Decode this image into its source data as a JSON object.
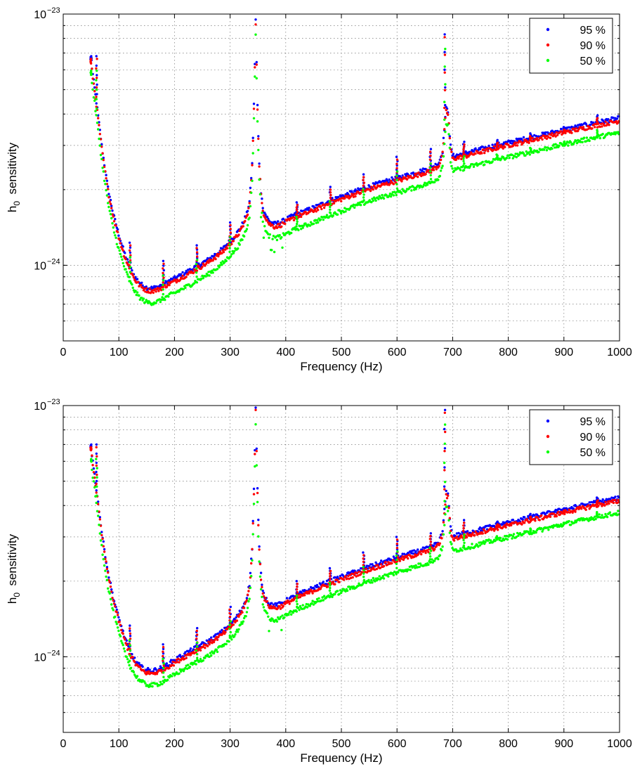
{
  "chart_data": [
    {
      "type": "scatter",
      "xlabel": "Frequency (Hz)",
      "ylabel_main": "h",
      "ylabel_sub": "0",
      "ylabel_rest": "sensitivity",
      "xlim": [
        0,
        1000
      ],
      "ylim": [
        5e-25,
        1e-23
      ],
      "yscale": "log",
      "grid": true,
      "legend_position": "top-right",
      "x_ticks": [
        "0",
        "100",
        "200",
        "300",
        "400",
        "500",
        "600",
        "700",
        "800",
        "900",
        "1000"
      ],
      "y_ticks": [
        {
          "base": "10",
          "exp": "−24"
        },
        {
          "base": "10",
          "exp": "−23"
        }
      ],
      "baseline": [
        [
          50,
          6.5e-24
        ],
        [
          60,
          4.4e-24
        ],
        [
          70,
          2.9e-24
        ],
        [
          80,
          2.05e-24
        ],
        [
          90,
          1.6e-24
        ],
        [
          100,
          1.32e-24
        ],
        [
          110,
          1.12e-24
        ],
        [
          120,
          9.8e-25
        ],
        [
          130,
          8.9e-25
        ],
        [
          140,
          8.4e-25
        ],
        [
          150,
          8.15e-25
        ],
        [
          160,
          8.1e-25
        ],
        [
          170,
          8.2e-25
        ],
        [
          180,
          8.4e-25
        ],
        [
          190,
          8.65e-25
        ],
        [
          200,
          8.85e-25
        ],
        [
          210,
          9.1e-25
        ],
        [
          220,
          9.35e-25
        ],
        [
          230,
          9.6e-25
        ],
        [
          240,
          9.9e-25
        ],
        [
          250,
          1.02e-24
        ],
        [
          260,
          1.05e-24
        ],
        [
          270,
          1.09e-24
        ],
        [
          280,
          1.13e-24
        ],
        [
          290,
          1.18e-24
        ],
        [
          300,
          1.25e-24
        ],
        [
          310,
          1.32e-24
        ],
        [
          320,
          1.42e-24
        ],
        [
          330,
          1.6e-24
        ],
        [
          335,
          1.8e-24
        ],
        [
          340,
          2.6e-24
        ],
        [
          343,
          4.5e-24
        ],
        [
          346,
          9.5e-24
        ],
        [
          349,
          4.5e-24
        ],
        [
          352,
          2.6e-24
        ],
        [
          356,
          1.9e-24
        ],
        [
          360,
          1.65e-24
        ],
        [
          370,
          1.5e-24
        ],
        [
          380,
          1.46e-24
        ],
        [
          390,
          1.48e-24
        ],
        [
          400,
          1.52e-24
        ],
        [
          420,
          1.6e-24
        ],
        [
          440,
          1.66e-24
        ],
        [
          460,
          1.73e-24
        ],
        [
          480,
          1.81e-24
        ],
        [
          500,
          1.88e-24
        ],
        [
          520,
          1.95e-24
        ],
        [
          540,
          2.02e-24
        ],
        [
          560,
          2.09e-24
        ],
        [
          580,
          2.16e-24
        ],
        [
          600,
          2.22e-24
        ],
        [
          620,
          2.29e-24
        ],
        [
          640,
          2.36e-24
        ],
        [
          660,
          2.43e-24
        ],
        [
          675,
          2.55e-24
        ],
        [
          682,
          2.85e-24
        ],
        [
          688,
          4.2e-24
        ],
        [
          692,
          4.1e-24
        ],
        [
          696,
          3e-24
        ],
        [
          700,
          2.72e-24
        ],
        [
          720,
          2.78e-24
        ],
        [
          740,
          2.86e-24
        ],
        [
          760,
          2.93e-24
        ],
        [
          780,
          3.01e-24
        ],
        [
          800,
          3.08e-24
        ],
        [
          820,
          3.15e-24
        ],
        [
          840,
          3.22e-24
        ],
        [
          860,
          3.3e-24
        ],
        [
          880,
          3.38e-24
        ],
        [
          900,
          3.46e-24
        ],
        [
          920,
          3.54e-24
        ],
        [
          940,
          3.62e-24
        ],
        [
          960,
          3.7e-24
        ],
        [
          980,
          3.78e-24
        ],
        [
          1000,
          3.85e-24
        ]
      ],
      "outliers": [
        [
          50,
          6.8e-24
        ],
        [
          60,
          6.8e-24
        ],
        [
          120,
          1.23e-24
        ],
        [
          180,
          1.04e-24
        ],
        [
          240,
          1.2e-24
        ],
        [
          300,
          1.48e-24
        ],
        [
          420,
          1.78e-24
        ],
        [
          480,
          2.05e-24
        ],
        [
          540,
          2.3e-24
        ],
        [
          600,
          2.7e-24
        ],
        [
          660,
          2.9e-24
        ],
        [
          686,
          8.3e-24
        ],
        [
          720,
          3.1e-24
        ],
        [
          780,
          3.15e-24
        ],
        [
          840,
          3.35e-24
        ],
        [
          900,
          3.55e-24
        ],
        [
          960,
          3.95e-24
        ]
      ],
      "series": [
        {
          "name": "95 %",
          "color": "#0000ff",
          "scale": 1.0
        },
        {
          "name": "90 %",
          "color": "#ff0000",
          "scale": 0.975
        },
        {
          "name": "50 %",
          "color": "#00ff00",
          "scale": 0.875
        }
      ]
    },
    {
      "type": "scatter",
      "xlabel": "Frequency (Hz)",
      "ylabel_main": "h",
      "ylabel_sub": "0",
      "ylabel_rest": "sensitivity",
      "xlim": [
        0,
        1000
      ],
      "ylim": [
        5e-25,
        1e-23
      ],
      "yscale": "log",
      "grid": true,
      "legend_position": "top-right",
      "x_ticks": [
        "0",
        "100",
        "200",
        "300",
        "400",
        "500",
        "600",
        "700",
        "800",
        "900",
        "1000"
      ],
      "y_ticks": [
        {
          "base": "10",
          "exp": "−24"
        },
        {
          "base": "10",
          "exp": "−23"
        }
      ],
      "baseline": [
        [
          50,
          6.8e-24
        ],
        [
          60,
          4.6e-24
        ],
        [
          70,
          3.05e-24
        ],
        [
          80,
          2.2e-24
        ],
        [
          90,
          1.72e-24
        ],
        [
          100,
          1.42e-24
        ],
        [
          110,
          1.2e-24
        ],
        [
          120,
          1.05e-24
        ],
        [
          130,
          9.6e-25
        ],
        [
          140,
          9.1e-25
        ],
        [
          150,
          8.85e-25
        ],
        [
          160,
          8.8e-25
        ],
        [
          170,
          8.9e-25
        ],
        [
          180,
          9.1e-25
        ],
        [
          190,
          9.4e-25
        ],
        [
          200,
          9.7e-25
        ],
        [
          210,
          1e-24
        ],
        [
          220,
          1.03e-24
        ],
        [
          230,
          1.06e-24
        ],
        [
          240,
          1.09e-24
        ],
        [
          250,
          1.12e-24
        ],
        [
          260,
          1.15e-24
        ],
        [
          270,
          1.19e-24
        ],
        [
          280,
          1.23e-24
        ],
        [
          290,
          1.28e-24
        ],
        [
          300,
          1.34e-24
        ],
        [
          310,
          1.42e-24
        ],
        [
          320,
          1.53e-24
        ],
        [
          330,
          1.72e-24
        ],
        [
          335,
          1.95e-24
        ],
        [
          340,
          2.8e-24
        ],
        [
          343,
          4.8e-24
        ],
        [
          346,
          9.7e-24
        ],
        [
          349,
          4.8e-24
        ],
        [
          352,
          2.8e-24
        ],
        [
          356,
          2.05e-24
        ],
        [
          360,
          1.78e-24
        ],
        [
          370,
          1.63e-24
        ],
        [
          380,
          1.6e-24
        ],
        [
          390,
          1.62e-24
        ],
        [
          400,
          1.67e-24
        ],
        [
          420,
          1.76e-24
        ],
        [
          440,
          1.84e-24
        ],
        [
          460,
          1.92e-24
        ],
        [
          480,
          2e-24
        ],
        [
          500,
          2.08e-24
        ],
        [
          520,
          2.16e-24
        ],
        [
          540,
          2.24e-24
        ],
        [
          560,
          2.32e-24
        ],
        [
          580,
          2.4e-24
        ],
        [
          600,
          2.48e-24
        ],
        [
          620,
          2.56e-24
        ],
        [
          640,
          2.64e-24
        ],
        [
          660,
          2.72e-24
        ],
        [
          675,
          2.85e-24
        ],
        [
          682,
          3.15e-24
        ],
        [
          688,
          4.5e-24
        ],
        [
          692,
          4.4e-24
        ],
        [
          696,
          3.3e-24
        ],
        [
          700,
          3.02e-24
        ],
        [
          720,
          3.09e-24
        ],
        [
          740,
          3.17e-24
        ],
        [
          760,
          3.26e-24
        ],
        [
          780,
          3.34e-24
        ],
        [
          800,
          3.42e-24
        ],
        [
          820,
          3.5e-24
        ],
        [
          840,
          3.58e-24
        ],
        [
          860,
          3.67e-24
        ],
        [
          880,
          3.76e-24
        ],
        [
          900,
          3.85e-24
        ],
        [
          920,
          3.94e-24
        ],
        [
          940,
          4.03e-24
        ],
        [
          960,
          4.12e-24
        ],
        [
          980,
          4.2e-24
        ],
        [
          1000,
          4.28e-24
        ]
      ],
      "outliers": [
        [
          50,
          7e-24
        ],
        [
          60,
          7e-24
        ],
        [
          120,
          1.33e-24
        ],
        [
          180,
          1.12e-24
        ],
        [
          240,
          1.3e-24
        ],
        [
          300,
          1.58e-24
        ],
        [
          420,
          2e-24
        ],
        [
          480,
          2.25e-24
        ],
        [
          540,
          2.6e-24
        ],
        [
          600,
          3e-24
        ],
        [
          660,
          3.1e-24
        ],
        [
          686,
          9.6e-24
        ],
        [
          720,
          3.5e-24
        ],
        [
          780,
          3.45e-24
        ],
        [
          840,
          3.7e-24
        ],
        [
          900,
          3.9e-24
        ],
        [
          960,
          4.3e-24
        ]
      ],
      "series": [
        {
          "name": "95 %",
          "color": "#0000ff",
          "scale": 1.0
        },
        {
          "name": "90 %",
          "color": "#ff0000",
          "scale": 0.975
        },
        {
          "name": "50 %",
          "color": "#00ff00",
          "scale": 0.875
        }
      ]
    }
  ]
}
